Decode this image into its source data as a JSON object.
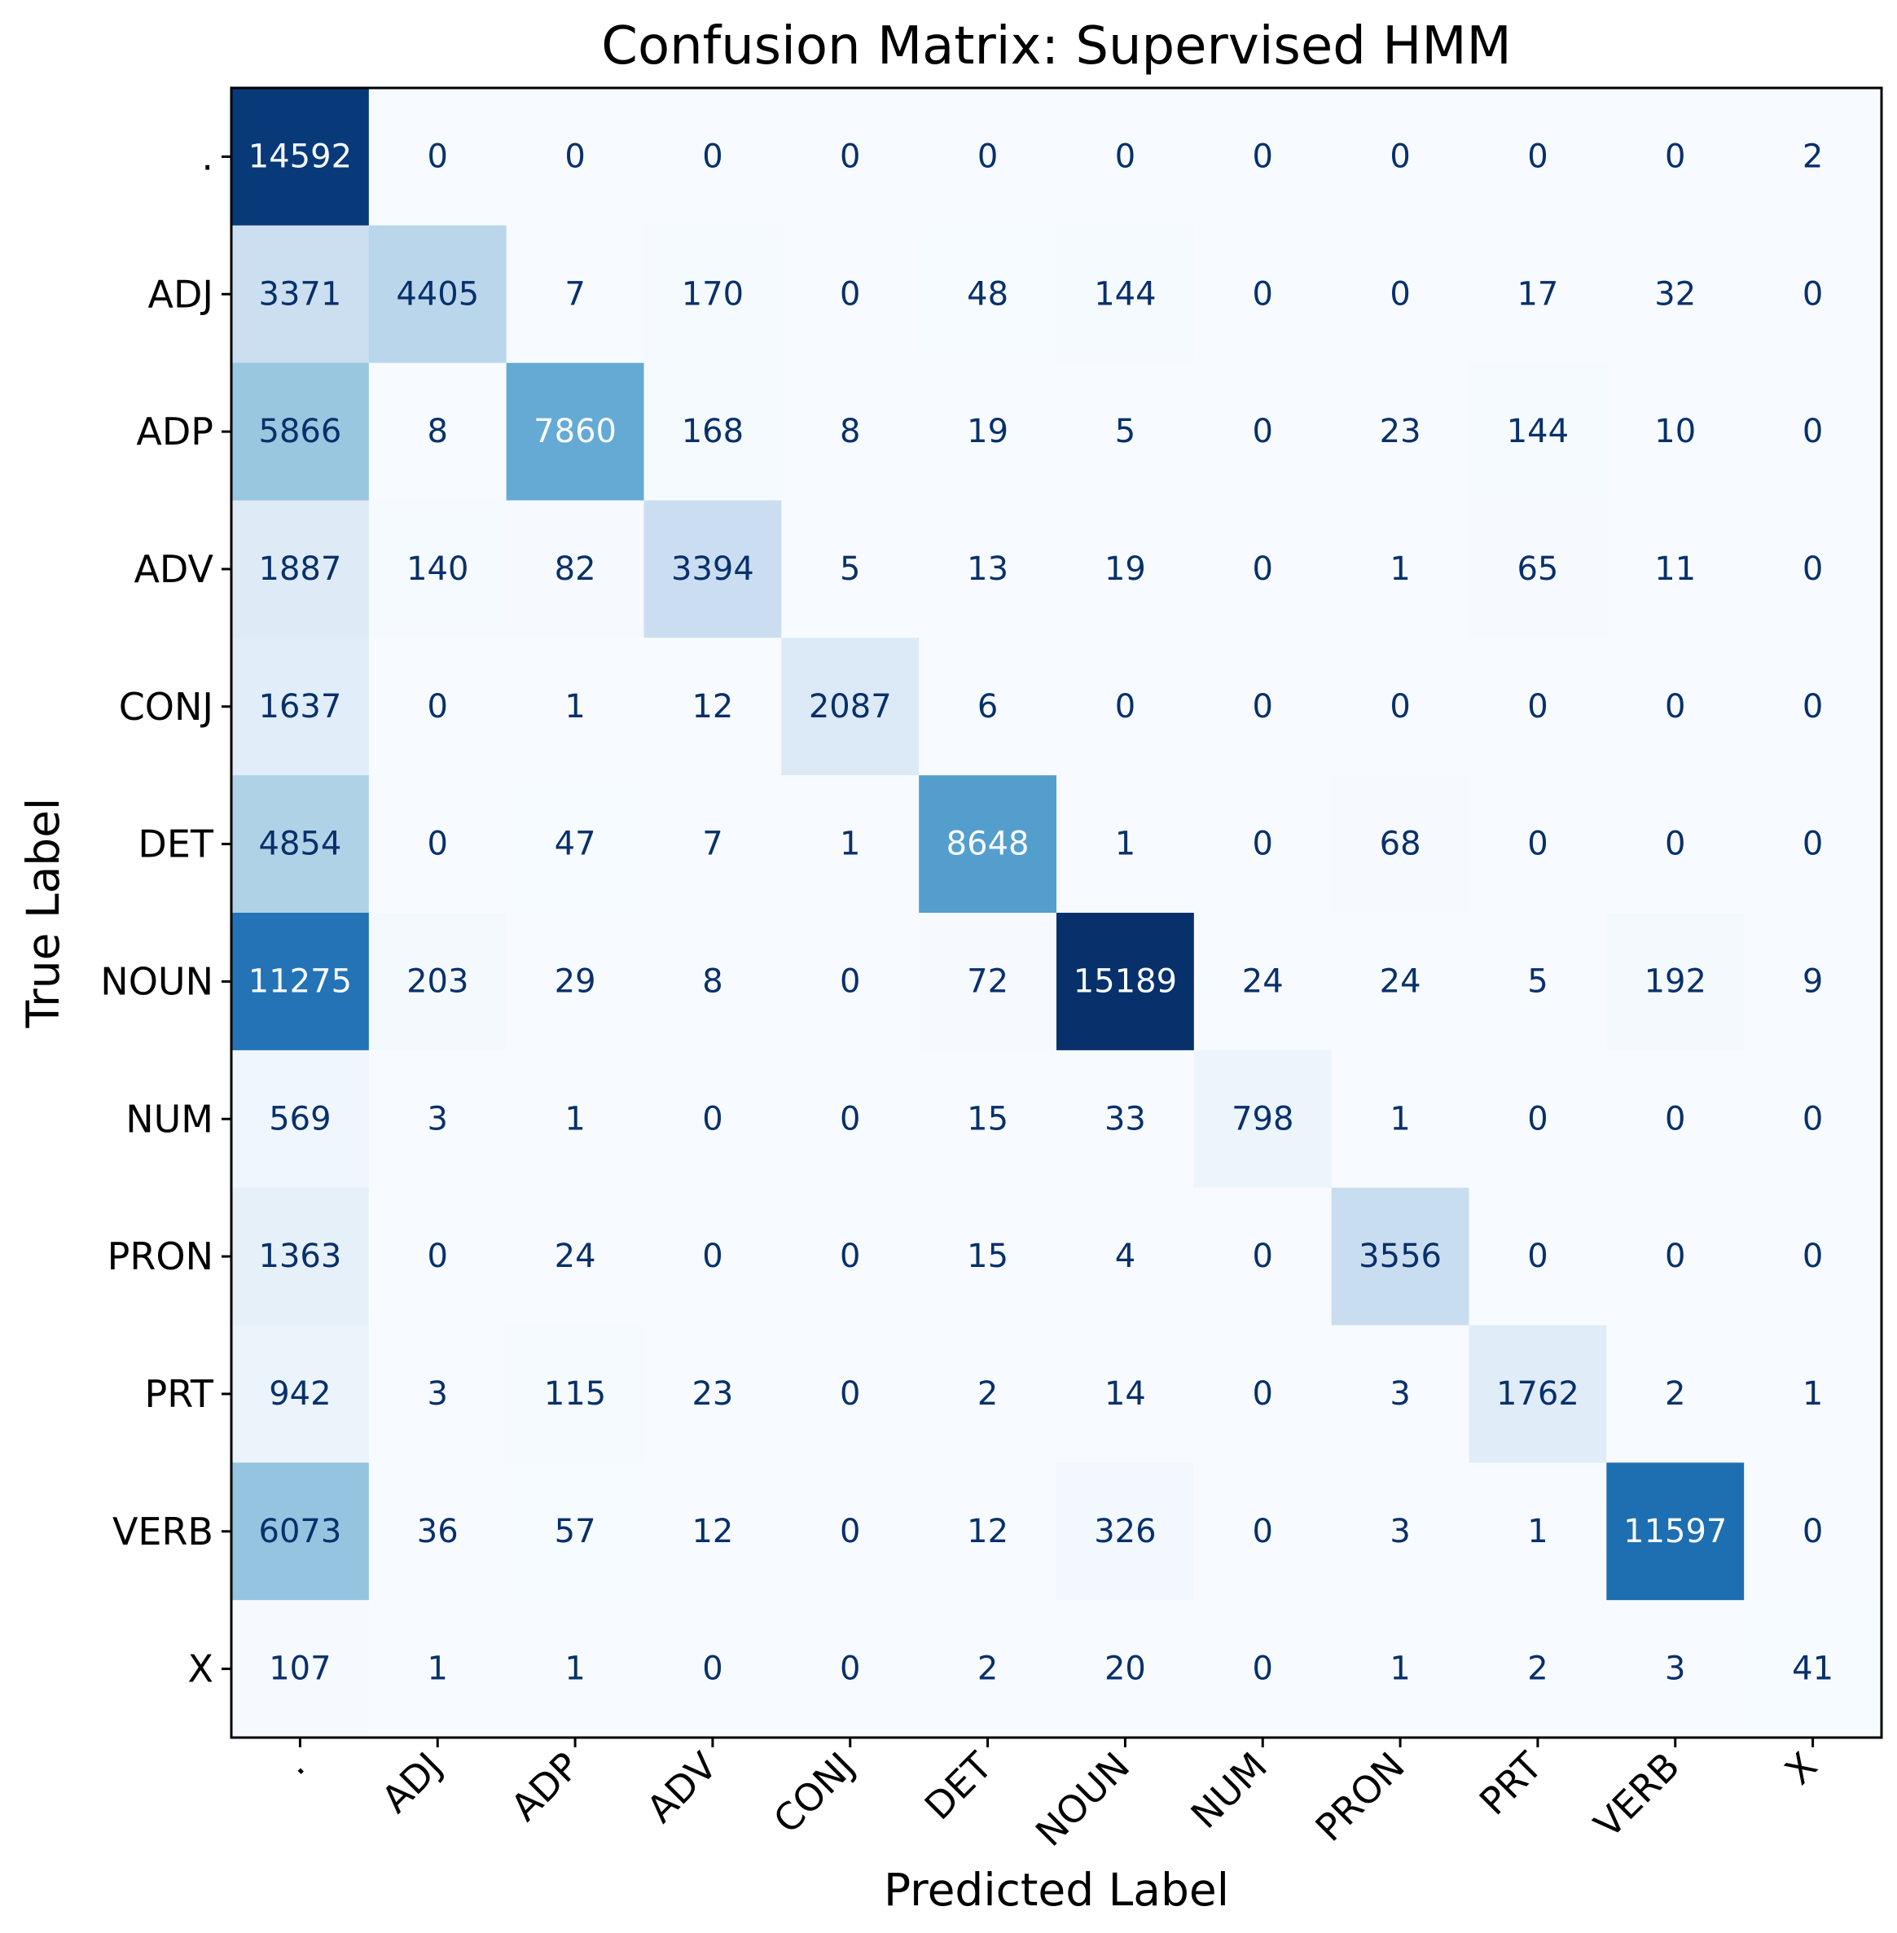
{
  "chart_data": {
    "type": "heatmap",
    "title": "Confusion Matrix: Supervised HMM",
    "xlabel": "Predicted Label",
    "ylabel": "True Label",
    "labels": [
      ".",
      "ADJ",
      "ADP",
      "ADV",
      "CONJ",
      "DET",
      "NOUN",
      "NUM",
      "PRON",
      "PRT",
      "VERB",
      "X"
    ],
    "matrix": [
      [
        14592,
        0,
        0,
        0,
        0,
        0,
        0,
        0,
        0,
        0,
        0,
        2
      ],
      [
        3371,
        4405,
        7,
        170,
        0,
        48,
        144,
        0,
        0,
        17,
        32,
        0
      ],
      [
        5866,
        8,
        7860,
        168,
        8,
        19,
        5,
        0,
        23,
        144,
        10,
        0
      ],
      [
        1887,
        140,
        82,
        3394,
        5,
        13,
        19,
        0,
        1,
        65,
        11,
        0
      ],
      [
        1637,
        0,
        1,
        12,
        2087,
        6,
        0,
        0,
        0,
        0,
        0,
        0
      ],
      [
        4854,
        0,
        47,
        7,
        1,
        8648,
        1,
        0,
        68,
        0,
        0,
        0
      ],
      [
        11275,
        203,
        29,
        8,
        0,
        72,
        15189,
        24,
        24,
        5,
        192,
        9
      ],
      [
        569,
        3,
        1,
        0,
        0,
        15,
        33,
        798,
        1,
        0,
        0,
        0
      ],
      [
        1363,
        0,
        24,
        0,
        0,
        15,
        4,
        0,
        3556,
        0,
        0,
        0
      ],
      [
        942,
        3,
        115,
        23,
        0,
        2,
        14,
        0,
        3,
        1762,
        2,
        1
      ],
      [
        6073,
        36,
        57,
        12,
        0,
        12,
        326,
        0,
        3,
        1,
        11597,
        0
      ],
      [
        107,
        1,
        1,
        0,
        0,
        2,
        20,
        0,
        1,
        2,
        3,
        41
      ]
    ],
    "colormap": "Blues",
    "colorbar": false,
    "grid": false,
    "colors": {
      "low": "#f7fbff",
      "high": "#08306b",
      "text_dark": "#08306b",
      "text_light": "#f7fbff"
    }
  }
}
